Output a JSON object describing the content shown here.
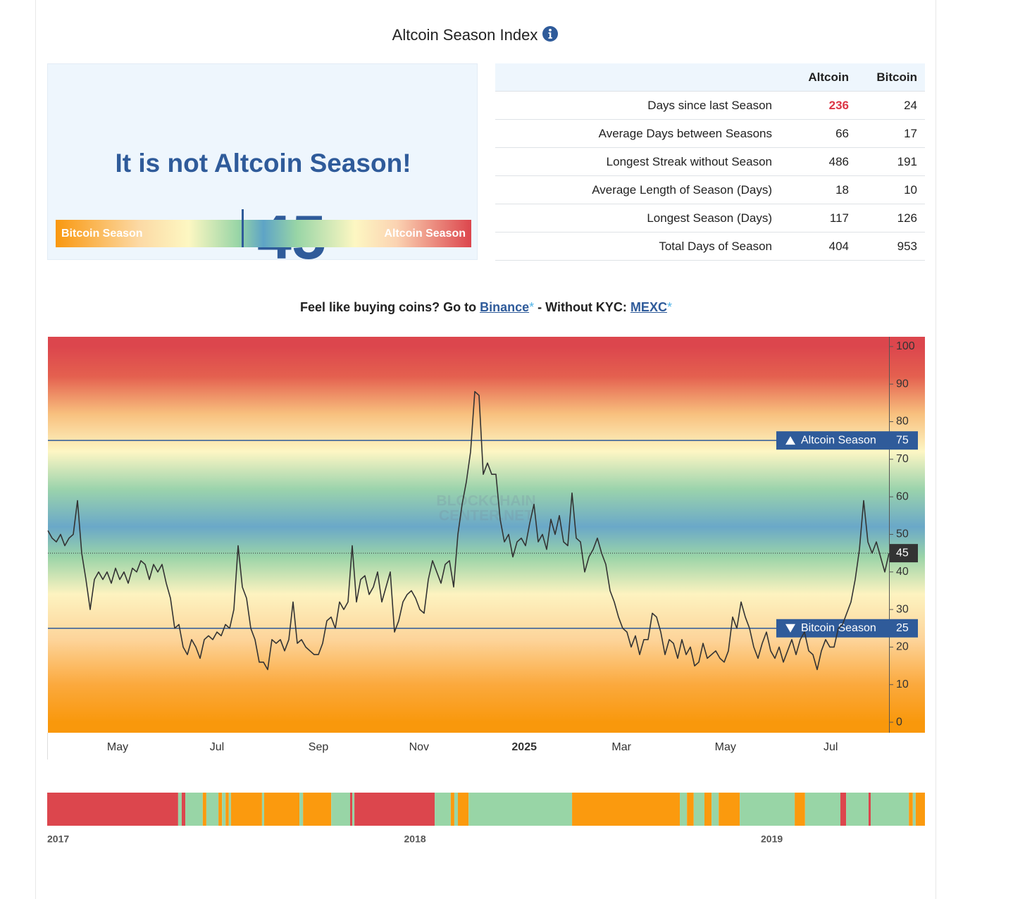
{
  "title": "Altcoin Season Index",
  "status": "It is not Altcoin Season!",
  "gauge": {
    "value": 45,
    "xlim": [
      0,
      100
    ],
    "left_label": "Bitcoin Season",
    "right_label": "Altcoin Season"
  },
  "table": {
    "columns": [
      "Altcoin",
      "Bitcoin"
    ],
    "rows": [
      [
        "Days since last Season",
        236,
        24
      ],
      [
        "Average Days between Seasons",
        66,
        17
      ],
      [
        "Longest Streak without Season",
        486,
        191
      ],
      [
        "Average Length of Season (Days)",
        18,
        10
      ],
      [
        "Longest Season (Days)",
        117,
        126
      ],
      [
        "Total Days of Season",
        404,
        953
      ]
    ]
  },
  "promo": [
    "Feel like buying coins? Go to ",
    "Binance",
    "*",
    " - Without KYC: ",
    "MEXC",
    "*"
  ],
  "chart_data": [
    {
      "type": "line",
      "watermark": [
        "BLOCKCHAIN",
        "CENTER.NET"
      ],
      "series": [
        {
          "color": "#333333",
          "values": [
            51,
            49,
            48,
            50,
            47,
            49,
            50,
            59,
            45,
            38,
            30,
            38,
            40,
            38,
            40,
            37,
            41,
            38,
            40,
            37,
            41,
            40,
            43,
            42,
            38,
            42,
            40,
            42,
            37,
            33,
            25,
            26,
            20,
            18,
            22,
            20,
            17,
            22,
            23,
            22,
            24,
            23,
            26,
            25,
            30,
            47,
            36,
            33,
            25,
            22,
            16,
            16,
            14,
            22,
            21,
            22,
            19,
            22,
            32,
            21,
            22,
            20,
            19,
            18,
            18,
            21,
            27,
            28,
            25,
            32,
            30,
            32,
            47,
            32,
            38,
            39,
            34,
            36,
            40,
            32,
            36,
            40,
            24,
            27,
            32,
            34,
            35,
            33,
            30,
            29,
            38,
            43,
            40,
            37,
            42,
            43,
            36,
            50,
            58,
            64,
            72,
            88,
            87,
            66,
            69,
            66,
            66,
            54,
            48,
            50,
            44,
            48,
            49,
            47,
            53,
            58,
            48,
            50,
            46,
            54,
            50,
            55,
            48,
            47,
            61,
            49,
            48,
            40,
            44,
            46,
            49,
            45,
            42,
            35,
            32,
            28,
            25,
            24,
            20,
            23,
            18,
            22,
            22,
            29,
            28,
            24,
            18,
            22,
            21,
            17,
            22,
            18,
            20,
            15,
            16,
            21,
            17,
            18,
            19,
            17,
            16,
            19,
            28,
            25,
            32,
            28,
            25,
            20,
            17,
            21,
            24,
            19,
            17,
            20,
            16,
            19,
            22,
            18,
            22,
            24,
            19,
            18,
            14,
            19,
            22,
            20,
            20,
            25,
            26,
            29,
            32,
            38,
            46,
            59,
            48,
            45,
            48,
            44,
            40,
            45
          ]
        }
      ],
      "xlim": [
        0,
        199
      ],
      "xticks": [
        {
          "value": 16.5,
          "label": "May"
        },
        {
          "value": 40,
          "label": "Jul"
        },
        {
          "value": 64,
          "label": "Sep"
        },
        {
          "value": 87.8,
          "label": "Nov"
        },
        {
          "value": 112.7,
          "label": "2025"
        },
        {
          "value": 135.7,
          "label": "Mar"
        },
        {
          "value": 160.3,
          "label": "May"
        },
        {
          "value": 185.2,
          "label": "Jul"
        }
      ],
      "ylim": [
        -2.8,
        102.6
      ],
      "yticks": [
        0,
        10,
        20,
        30,
        40,
        50,
        60,
        70,
        80,
        90,
        100
      ],
      "y_axis_side": "right",
      "grid": false,
      "annotations": [
        {
          "label": "Altcoin Season",
          "value": 75,
          "direction": "up",
          "color": "#2f5b9a"
        },
        {
          "label": "Bitcoin Season",
          "value": 25,
          "direction": "down",
          "color": "#2f5b9a"
        }
      ]
    },
    {
      "type": "timeline",
      "xlim": [
        2017,
        2019.46
      ],
      "xticks": [
        2017,
        2018,
        2019
      ],
      "segments": [
        {
          "start": 2017.0,
          "end": 2017.367,
          "color": "#dc464d"
        },
        {
          "start": 2017.367,
          "end": 2017.377,
          "color": "#98d5a6"
        },
        {
          "start": 2017.377,
          "end": 2017.387,
          "color": "#dc464d"
        },
        {
          "start": 2017.387,
          "end": 2017.436,
          "color": "#98d5a6"
        },
        {
          "start": 2017.436,
          "end": 2017.446,
          "color": "#fb9a0e"
        },
        {
          "start": 2017.446,
          "end": 2017.48,
          "color": "#98d5a6"
        },
        {
          "start": 2017.48,
          "end": 2017.49,
          "color": "#fb9a0e"
        },
        {
          "start": 2017.49,
          "end": 2017.5,
          "color": "#98d5a6"
        },
        {
          "start": 2017.5,
          "end": 2017.509,
          "color": "#fb9a0e"
        },
        {
          "start": 2017.509,
          "end": 2017.515,
          "color": "#98d5a6"
        },
        {
          "start": 2017.515,
          "end": 2017.602,
          "color": "#fb9a0e"
        },
        {
          "start": 2017.602,
          "end": 2017.608,
          "color": "#98d5a6"
        },
        {
          "start": 2017.608,
          "end": 2017.707,
          "color": "#fb9a0e"
        },
        {
          "start": 2017.707,
          "end": 2017.717,
          "color": "#98d5a6"
        },
        {
          "start": 2017.717,
          "end": 2017.796,
          "color": "#fb9a0e"
        },
        {
          "start": 2017.796,
          "end": 2017.849,
          "color": "#98d5a6"
        },
        {
          "start": 2017.849,
          "end": 2017.855,
          "color": "#dc464d"
        },
        {
          "start": 2017.855,
          "end": 2017.861,
          "color": "#98d5a6"
        },
        {
          "start": 2017.861,
          "end": 2018.086,
          "color": "#dc464d"
        },
        {
          "start": 2018.086,
          "end": 2018.131,
          "color": "#98d5a6"
        },
        {
          "start": 2018.131,
          "end": 2018.141,
          "color": "#fb9a0e"
        },
        {
          "start": 2018.141,
          "end": 2018.151,
          "color": "#98d5a6"
        },
        {
          "start": 2018.151,
          "end": 2018.181,
          "color": "#fb9a0e"
        },
        {
          "start": 2018.181,
          "end": 2018.471,
          "color": "#98d5a6"
        },
        {
          "start": 2018.471,
          "end": 2018.773,
          "color": "#fb9a0e"
        },
        {
          "start": 2018.773,
          "end": 2018.793,
          "color": "#98d5a6"
        },
        {
          "start": 2018.793,
          "end": 2018.812,
          "color": "#fb9a0e"
        },
        {
          "start": 2018.812,
          "end": 2018.842,
          "color": "#98d5a6"
        },
        {
          "start": 2018.842,
          "end": 2018.862,
          "color": "#fb9a0e"
        },
        {
          "start": 2018.862,
          "end": 2018.882,
          "color": "#98d5a6"
        },
        {
          "start": 2018.882,
          "end": 2018.941,
          "color": "#fb9a0e"
        },
        {
          "start": 2018.941,
          "end": 2019.095,
          "color": "#98d5a6"
        },
        {
          "start": 2019.095,
          "end": 2019.124,
          "color": "#fb9a0e"
        },
        {
          "start": 2019.124,
          "end": 2019.223,
          "color": "#98d5a6"
        },
        {
          "start": 2019.223,
          "end": 2019.239,
          "color": "#dc464d"
        },
        {
          "start": 2019.239,
          "end": 2019.302,
          "color": "#98d5a6"
        },
        {
          "start": 2019.302,
          "end": 2019.308,
          "color": "#dc464d"
        },
        {
          "start": 2019.308,
          "end": 2019.415,
          "color": "#98d5a6"
        },
        {
          "start": 2019.415,
          "end": 2019.426,
          "color": "#fb9a0e"
        },
        {
          "start": 2019.426,
          "end": 2019.434,
          "color": "#98d5a6"
        },
        {
          "start": 2019.434,
          "end": 2019.46,
          "color": "#fb9a0e"
        }
      ]
    }
  ]
}
